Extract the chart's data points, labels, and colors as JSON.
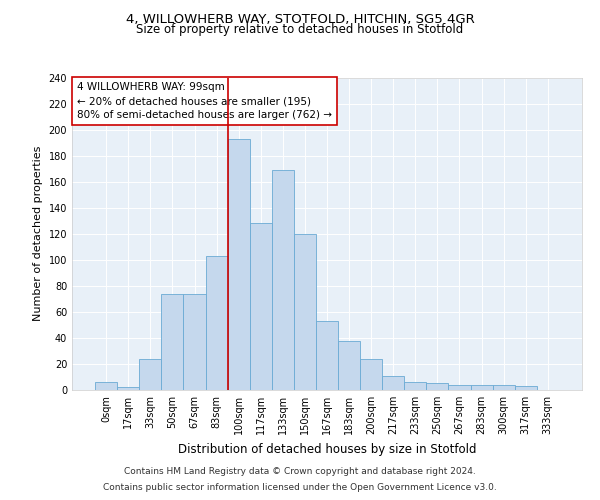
{
  "title1": "4, WILLOWHERB WAY, STOTFOLD, HITCHIN, SG5 4GR",
  "title2": "Size of property relative to detached houses in Stotfold",
  "xlabel": "Distribution of detached houses by size in Stotfold",
  "ylabel": "Number of detached properties",
  "footnote1": "Contains HM Land Registry data © Crown copyright and database right 2024.",
  "footnote2": "Contains public sector information licensed under the Open Government Licence v3.0.",
  "bar_labels": [
    "0sqm",
    "17sqm",
    "33sqm",
    "50sqm",
    "67sqm",
    "83sqm",
    "100sqm",
    "117sqm",
    "133sqm",
    "150sqm",
    "167sqm",
    "183sqm",
    "200sqm",
    "217sqm",
    "233sqm",
    "250sqm",
    "267sqm",
    "283sqm",
    "300sqm",
    "317sqm",
    "333sqm"
  ],
  "bar_values": [
    6,
    2,
    24,
    74,
    74,
    103,
    193,
    128,
    169,
    120,
    53,
    38,
    24,
    11,
    6,
    5,
    4,
    4,
    4,
    3,
    0
  ],
  "bar_color": "#c5d8ed",
  "bar_edge_color": "#6aaad4",
  "bar_width": 1.0,
  "vline_x_index": 6,
  "vline_color": "#cc0000",
  "annotation_text": "4 WILLOWHERB WAY: 99sqm\n← 20% of detached houses are smaller (195)\n80% of semi-detached houses are larger (762) →",
  "annotation_box_color": "#ffffff",
  "annotation_box_edge": "#cc0000",
  "ylim": [
    0,
    240
  ],
  "yticks": [
    0,
    20,
    40,
    60,
    80,
    100,
    120,
    140,
    160,
    180,
    200,
    220,
    240
  ],
  "bg_color": "#e8f0f8",
  "title1_fontsize": 9.5,
  "title2_fontsize": 8.5,
  "xlabel_fontsize": 8.5,
  "ylabel_fontsize": 8.0,
  "tick_fontsize": 7.0,
  "annotation_fontsize": 7.5,
  "footnote_fontsize": 6.5
}
